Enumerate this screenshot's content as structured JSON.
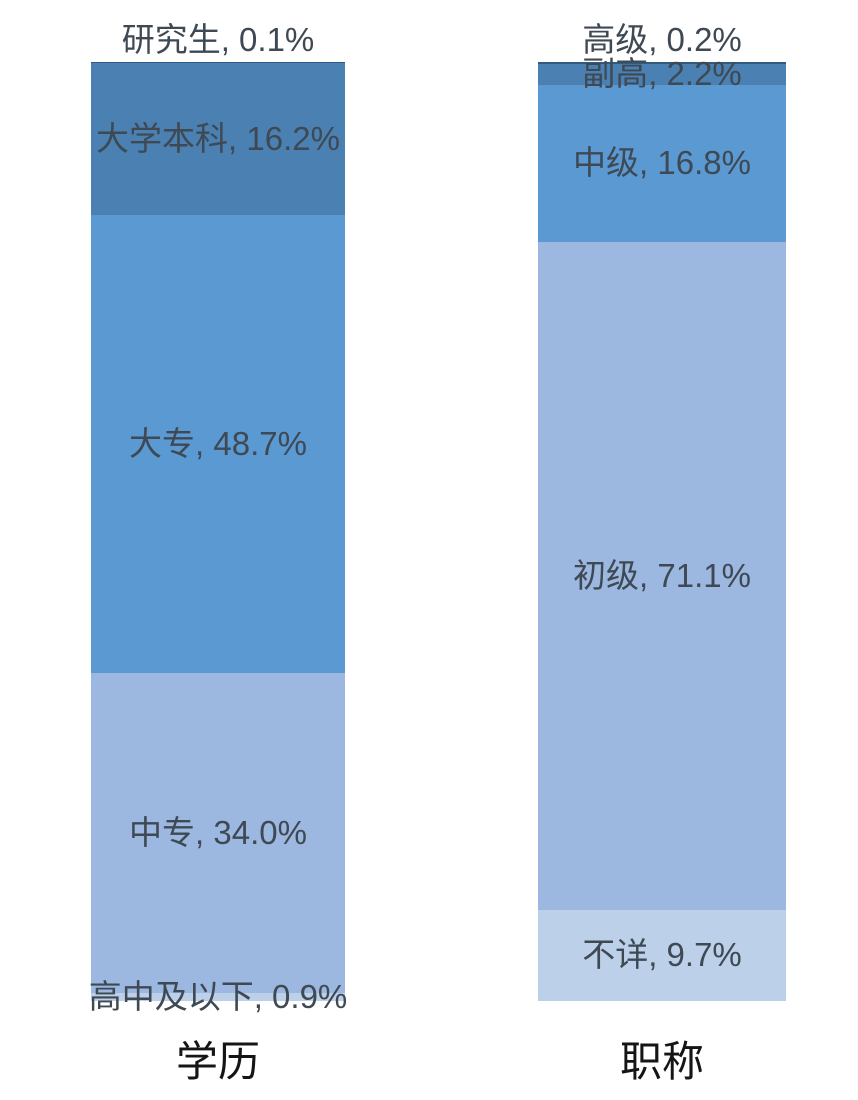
{
  "background_color": "#ffffff",
  "label_text_color": "#3e4953",
  "axis_label_color": "#151515",
  "chart_data": {
    "type": "bar",
    "subtype": "100%-stacked-column",
    "orientation": "vertical",
    "title": "",
    "xlabel": "",
    "ylabel": "",
    "ylim": [
      0,
      100
    ],
    "grid": false,
    "legend": false,
    "axes_lines": false,
    "categories": [
      "学历",
      "职称"
    ],
    "bars": [
      {
        "category": "学历",
        "segments": [
          {
            "label": "研究生",
            "value": 0.1,
            "color": "#315a82",
            "label_text": "研究生, 0.1%",
            "label_position": "above"
          },
          {
            "label": "大学本科",
            "value": 16.2,
            "color": "#4b80b2",
            "label_text": "大学本科, 16.2%",
            "label_position": "inside"
          },
          {
            "label": "大专",
            "value": 48.7,
            "color": "#5b99d3",
            "label_text": "大专, 48.7%",
            "label_position": "inside"
          },
          {
            "label": "中专",
            "value": 34.0,
            "color": "#9cb8e0",
            "label_text": "中专, 34.0%",
            "label_position": "inside"
          },
          {
            "label": "高中及以下",
            "value": 0.9,
            "color": "#bdd0ea",
            "label_text": "高中及以下, 0.9%",
            "label_position": "inside"
          }
        ]
      },
      {
        "category": "职称",
        "segments": [
          {
            "label": "高级",
            "value": 0.2,
            "color": "#315a82",
            "label_text": "高级, 0.2%",
            "label_position": "above"
          },
          {
            "label": "副高",
            "value": 2.2,
            "color": "#4b80b2",
            "label_text": "副高, 2.2%",
            "label_position": "inside"
          },
          {
            "label": "中级",
            "value": 16.8,
            "color": "#5b99d3",
            "label_text": "中级, 16.8%",
            "label_position": "inside"
          },
          {
            "label": "初级",
            "value": 71.1,
            "color": "#9cb8e0",
            "label_text": "初级, 71.1%",
            "label_position": "inside"
          },
          {
            "label": "不详",
            "value": 9.7,
            "color": "#bdd0ea",
            "label_text": "不详, 9.7%",
            "label_position": "inside"
          }
        ]
      }
    ]
  }
}
